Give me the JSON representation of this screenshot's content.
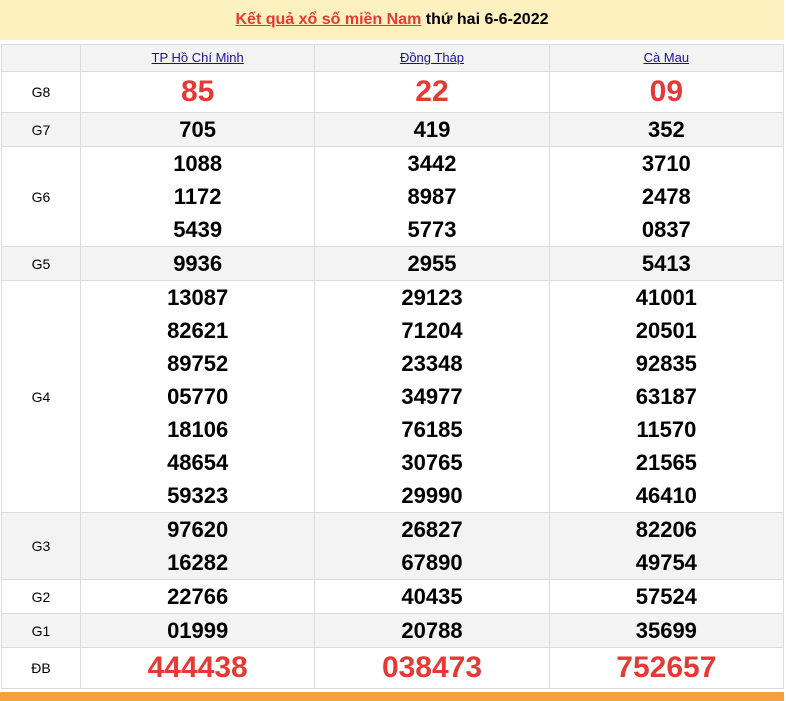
{
  "title": {
    "link": "Kết quả xổ số miền Nam",
    "rest": " thứ hai 6-6-2022"
  },
  "provinces": [
    "TP Hồ Chí Minh",
    "Đồng Tháp",
    "Cà Mau"
  ],
  "accent": "#e53935",
  "prizes": [
    {
      "label": "G8",
      "big": true,
      "gray": false,
      "values": [
        [
          "85"
        ],
        [
          "22"
        ],
        [
          "09"
        ]
      ]
    },
    {
      "label": "G7",
      "gray": true,
      "values": [
        [
          "705"
        ],
        [
          "419"
        ],
        [
          "352"
        ]
      ]
    },
    {
      "label": "G6",
      "gray": false,
      "values": [
        [
          "1088",
          "1172",
          "5439"
        ],
        [
          "3442",
          "8987",
          "5773"
        ],
        [
          "3710",
          "2478",
          "0837"
        ]
      ]
    },
    {
      "label": "G5",
      "gray": true,
      "values": [
        [
          "9936"
        ],
        [
          "2955"
        ],
        [
          "5413"
        ]
      ]
    },
    {
      "label": "G4",
      "gray": false,
      "values": [
        [
          "13087",
          "82621",
          "89752",
          "05770",
          "18106",
          "48654",
          "59323"
        ],
        [
          "29123",
          "71204",
          "23348",
          "34977",
          "76185",
          "30765",
          "29990"
        ],
        [
          "41001",
          "20501",
          "92835",
          "63187",
          "11570",
          "21565",
          "46410"
        ]
      ]
    },
    {
      "label": "G3",
      "gray": true,
      "values": [
        [
          "97620",
          "16282"
        ],
        [
          "26827",
          "67890"
        ],
        [
          "82206",
          "49754"
        ]
      ]
    },
    {
      "label": "G2",
      "gray": false,
      "values": [
        [
          "22766"
        ],
        [
          "40435"
        ],
        [
          "57524"
        ]
      ]
    },
    {
      "label": "G1",
      "gray": true,
      "values": [
        [
          "01999"
        ],
        [
          "20788"
        ],
        [
          "35699"
        ]
      ]
    },
    {
      "label": "ĐB",
      "big": true,
      "gray": false,
      "values": [
        [
          "444438"
        ],
        [
          "038473"
        ],
        [
          "752657"
        ]
      ]
    }
  ]
}
